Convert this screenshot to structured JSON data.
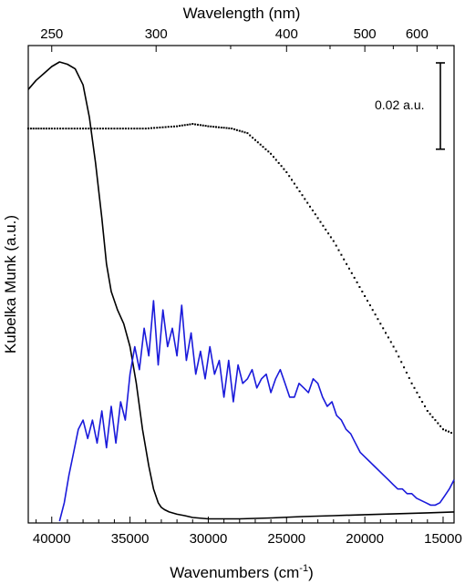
{
  "chart_data": {
    "type": "line",
    "title": "",
    "xlabel": "Wavenumbers (cm",
    "xlabel_sup": "-1",
    "xlabel_close": ")",
    "ylabel": "Kubelka Munk (a.u.)",
    "top_axis_label": "Wavelength (nm)",
    "xlim": [
      41500,
      14300
    ],
    "x_reversed": true,
    "ylim": [
      0,
      1
    ],
    "y_units": "relative (no numeric ticks)",
    "x_ticks": [
      {
        "value": 40000,
        "label": "40000"
      },
      {
        "value": 35000,
        "label": "35000"
      },
      {
        "value": 30000,
        "label": "30000"
      },
      {
        "value": 25000,
        "label": "25000"
      },
      {
        "value": 20000,
        "label": "20000"
      },
      {
        "value": 15000,
        "label": "15000"
      }
    ],
    "x_minor_ticks": [
      41000,
      39000,
      38000,
      37000,
      36000,
      34000,
      33000,
      32000,
      31000,
      29000,
      28000,
      27000,
      26000,
      24000,
      23000,
      22000,
      21000,
      19000,
      18000,
      17000,
      16000
    ],
    "top_ticks": [
      {
        "nm": 250,
        "label": "250"
      },
      {
        "nm": 300,
        "label": "300"
      },
      {
        "nm": 400,
        "label": "400"
      },
      {
        "nm": 500,
        "label": "500"
      },
      {
        "nm": 600,
        "label": "600"
      }
    ],
    "top_minor_ticks_nm": [
      350,
      450,
      550,
      650
    ],
    "scale_bar": {
      "label": "0.02 a.u.",
      "length": 0.188
    },
    "grid": false,
    "legend": "none",
    "series": [
      {
        "style": "solid",
        "color": "#000000",
        "x": [
          41500,
          41000,
          40500,
          40000,
          39500,
          39000,
          38500,
          38000,
          37600,
          37200,
          36800,
          36500,
          36200,
          35800,
          35400,
          35000,
          34600,
          34200,
          33800,
          33500,
          33200,
          33000,
          32800,
          32500,
          32000,
          31500,
          31000,
          30000,
          28000,
          26000,
          24000,
          22000,
          20000,
          18000,
          16000,
          14300
        ],
        "y": [
          0.94,
          0.96,
          0.975,
          0.99,
          1.0,
          0.995,
          0.985,
          0.95,
          0.88,
          0.78,
          0.66,
          0.56,
          0.5,
          0.46,
          0.43,
          0.38,
          0.3,
          0.2,
          0.12,
          0.07,
          0.04,
          0.03,
          0.025,
          0.02,
          0.015,
          0.012,
          0.008,
          0.005,
          0.005,
          0.007,
          0.01,
          0.012,
          0.014,
          0.016,
          0.018,
          0.02
        ]
      },
      {
        "style": "dotted",
        "color": "#000000",
        "x": [
          41500,
          40000,
          38000,
          36000,
          34000,
          32000,
          31000,
          30000,
          28500,
          27500,
          27000,
          26000,
          25000,
          24000,
          23000,
          22000,
          21000,
          20000,
          19000,
          18000,
          17000,
          16000,
          15000,
          14300
        ],
        "y": [
          0.855,
          0.855,
          0.855,
          0.855,
          0.855,
          0.86,
          0.865,
          0.86,
          0.855,
          0.845,
          0.83,
          0.8,
          0.76,
          0.71,
          0.66,
          0.61,
          0.55,
          0.49,
          0.43,
          0.37,
          0.3,
          0.24,
          0.2,
          0.19
        ]
      },
      {
        "style": "solid",
        "color": "#1a1adb",
        "x": [
          39500,
          39200,
          38900,
          38600,
          38300,
          38000,
          37700,
          37400,
          37100,
          36800,
          36500,
          36200,
          35900,
          35600,
          35300,
          35000,
          34700,
          34400,
          34100,
          33800,
          33500,
          33200,
          32900,
          32600,
          32300,
          32000,
          31700,
          31400,
          31100,
          30800,
          30500,
          30200,
          29900,
          29600,
          29300,
          29000,
          28700,
          28400,
          28100,
          27800,
          27500,
          27200,
          26900,
          26600,
          26300,
          26000,
          25700,
          25400,
          25100,
          24800,
          24500,
          24200,
          23900,
          23600,
          23300,
          23000,
          22700,
          22400,
          22100,
          21800,
          21500,
          21200,
          20900,
          20600,
          20300,
          20000,
          19700,
          19400,
          19100,
          18800,
          18500,
          18200,
          17900,
          17600,
          17300,
          17000,
          16700,
          16400,
          16100,
          15800,
          15500,
          15200,
          14900,
          14600,
          14300
        ],
        "y": [
          0.0,
          0.04,
          0.1,
          0.15,
          0.2,
          0.22,
          0.18,
          0.22,
          0.17,
          0.24,
          0.16,
          0.25,
          0.17,
          0.26,
          0.22,
          0.32,
          0.38,
          0.33,
          0.42,
          0.36,
          0.48,
          0.34,
          0.46,
          0.38,
          0.42,
          0.36,
          0.47,
          0.35,
          0.41,
          0.32,
          0.37,
          0.31,
          0.38,
          0.32,
          0.35,
          0.27,
          0.35,
          0.26,
          0.34,
          0.3,
          0.31,
          0.33,
          0.29,
          0.31,
          0.32,
          0.28,
          0.31,
          0.33,
          0.3,
          0.27,
          0.27,
          0.3,
          0.29,
          0.28,
          0.31,
          0.3,
          0.27,
          0.25,
          0.26,
          0.23,
          0.22,
          0.2,
          0.19,
          0.17,
          0.15,
          0.14,
          0.13,
          0.12,
          0.11,
          0.1,
          0.09,
          0.08,
          0.07,
          0.07,
          0.06,
          0.06,
          0.05,
          0.045,
          0.04,
          0.035,
          0.035,
          0.04,
          0.055,
          0.07,
          0.09
        ]
      }
    ]
  }
}
